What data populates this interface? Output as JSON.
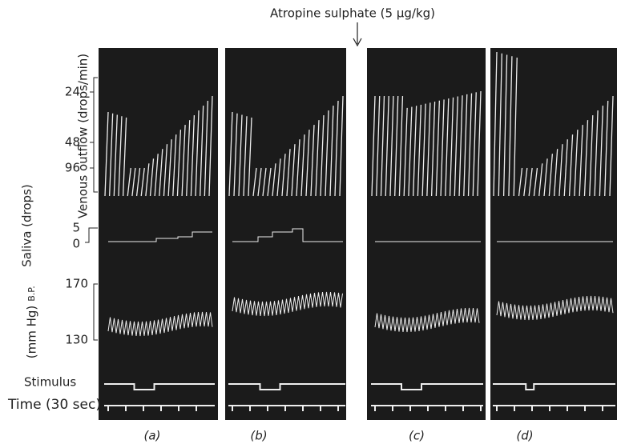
{
  "header": {
    "annotation": "Atropine sulphate (5 μg/kg)"
  },
  "axes": {
    "venous": {
      "label": "Venous outflow (drops/min)",
      "ticks": [
        "24",
        "48",
        "96"
      ]
    },
    "saliva": {
      "label": "Saliva (drops)",
      "ticks": [
        "5",
        "0"
      ]
    },
    "bp": {
      "label": "B.P.",
      "unit": "(mm Hg)",
      "ticks": [
        "170",
        "130"
      ]
    },
    "stimulus": "Stimulus",
    "time": "Time (30 sec)"
  },
  "panels": [
    "(a)",
    "(b)",
    "(c)",
    "(d)"
  ]
}
